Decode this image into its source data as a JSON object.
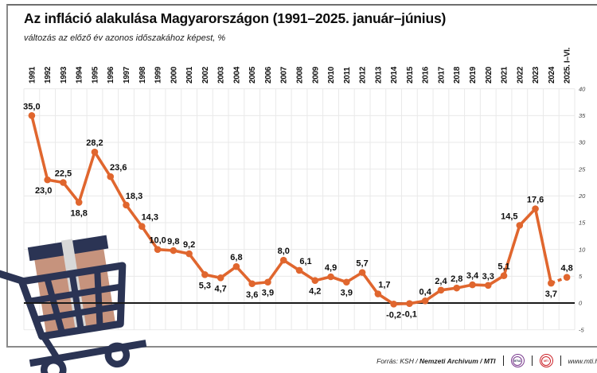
{
  "title": "Az infláció alakulása Magyarországon (1991–2025. január–június)",
  "subtitle": "változás az előző év azonos időszakához képest, %",
  "chart_data": {
    "type": "line",
    "title": "Az infláció alakulása Magyarországon (1991–2025. január–június)",
    "subtitle": "változás az előző év azonos időszakához képest, %",
    "xlabel": "",
    "ylabel": "%",
    "ylim": [
      -5,
      40
    ],
    "yticks": [
      40,
      35,
      30,
      25,
      20,
      15,
      10,
      5,
      0,
      -5
    ],
    "grid": true,
    "legend": "none",
    "line_color": "#E0662E",
    "categories": [
      "1991",
      "1992",
      "1993",
      "1994",
      "1995",
      "1996",
      "1997",
      "1998",
      "1999",
      "2000",
      "2001",
      "2002",
      "2003",
      "2004",
      "2005",
      "2006",
      "2007",
      "2008",
      "2009",
      "2010",
      "2011",
      "2012",
      "2013",
      "2014",
      "2015",
      "2016",
      "2017",
      "2018",
      "2019",
      "2020",
      "2021",
      "2022",
      "2023",
      "2024",
      "2025. I–VI."
    ],
    "values": [
      35.0,
      23.0,
      22.5,
      18.8,
      28.2,
      23.6,
      18.3,
      14.3,
      10.0,
      9.8,
      9.2,
      5.3,
      4.7,
      6.8,
      3.6,
      3.9,
      8.0,
      6.1,
      4.2,
      4.9,
      3.9,
      5.7,
      1.7,
      -0.2,
      -0.1,
      0.4,
      2.4,
      2.8,
      3.4,
      3.3,
      5.1,
      14.5,
      17.6,
      3.7,
      4.8
    ],
    "labels": [
      "35,0",
      "23,0",
      "22,5",
      "18,8",
      "28,2",
      "23,6",
      "18,3",
      "14,3",
      "10,0",
      "9,8",
      "9,2",
      "5,3",
      "4,7",
      "6,8",
      "3,6",
      "3,9",
      "8,0",
      "6,1",
      "4,2",
      "4,9",
      "3,9",
      "5,7",
      "1,7",
      "-0,2",
      "-0,1",
      "0,4",
      "2,4",
      "2,8",
      "3,4",
      "3,3",
      "5,1",
      "14,5",
      "17,6",
      "3,7",
      "4,8"
    ],
    "layout_hints": {
      "label_below_indices": [
        1,
        3,
        11,
        12,
        14,
        15,
        18,
        20,
        23,
        24,
        33
      ],
      "dashed_segment_start_index": 33,
      "year_labels_position": "top-rotated",
      "value_axis_position": "right"
    }
  },
  "footer": {
    "source_prefix": "Forrás: KSH / ",
    "source_bold": "Nemzeti Archivum / MTI",
    "logo_mtva": "MTVA",
    "logo_mti": "MTI",
    "website": "www.mti.hu"
  },
  "colors": {
    "line_orange": "#E0662E",
    "cart_navy": "#2B3454",
    "box_tan": "#C6937D",
    "tape_gray": "#D8D8D8",
    "grid_gray": "#e9e9e9",
    "mtva_purple": "#7A3B8F",
    "mti_red": "#CC2229"
  }
}
